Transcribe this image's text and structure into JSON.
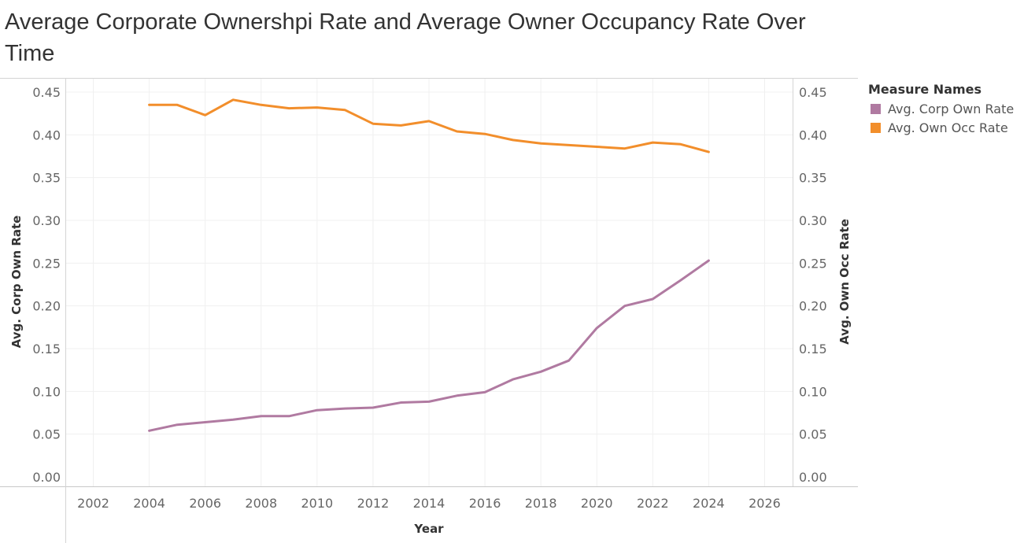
{
  "chart_data": {
    "type": "line",
    "title": "Average Corporate Ownershpi Rate and Average Owner Occupancy Rate Over Time",
    "xlabel": "Year",
    "ylabel_left": "Avg. Corp Own Rate",
    "ylabel_right": "Avg. Own Occ Rate",
    "xlim": [
      2001,
      2027
    ],
    "ylim": [
      0,
      0.45
    ],
    "x_ticks": [
      "2002",
      "2004",
      "2006",
      "2008",
      "2010",
      "2012",
      "2014",
      "2016",
      "2018",
      "2020",
      "2022",
      "2024",
      "2026"
    ],
    "y_ticks": [
      "0.00",
      "0.05",
      "0.10",
      "0.15",
      "0.20",
      "0.25",
      "0.30",
      "0.35",
      "0.40",
      "0.45"
    ],
    "grid": true,
    "legend": {
      "title": "Measure Names",
      "placement": "right"
    },
    "x": [
      2004,
      2005,
      2006,
      2007,
      2008,
      2009,
      2010,
      2011,
      2012,
      2013,
      2014,
      2015,
      2016,
      2017,
      2018,
      2019,
      2020,
      2021,
      2022,
      2023,
      2024
    ],
    "series": [
      {
        "name": "Avg. Corp Own Rate",
        "axis": "left",
        "color": "#b07aa1",
        "values": [
          0.054,
          0.061,
          0.064,
          0.067,
          0.071,
          0.071,
          0.078,
          0.08,
          0.081,
          0.087,
          0.088,
          0.095,
          0.099,
          0.114,
          0.123,
          0.136,
          0.174,
          0.2,
          0.208,
          0.23,
          0.253
        ]
      },
      {
        "name": "Avg. Own Occ Rate",
        "axis": "right",
        "color": "#f28e2b",
        "values": [
          0.435,
          0.435,
          0.423,
          0.441,
          0.435,
          0.431,
          0.432,
          0.429,
          0.413,
          0.411,
          0.416,
          0.404,
          0.401,
          0.394,
          0.39,
          0.388,
          0.386,
          0.384,
          0.391,
          0.389,
          0.38
        ]
      }
    ]
  }
}
